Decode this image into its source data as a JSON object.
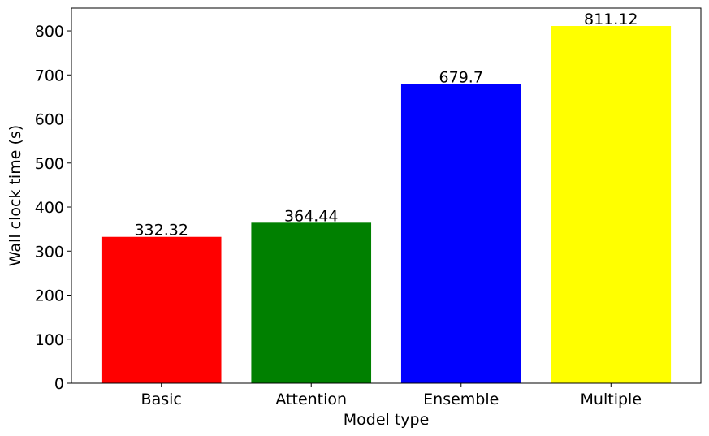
{
  "chart_data": {
    "type": "bar",
    "categories": [
      "Basic",
      "Attention",
      "Ensemble",
      "Multiple"
    ],
    "values": [
      332.32,
      364.44,
      679.7,
      811.12
    ],
    "value_labels": [
      "332.32",
      "364.44",
      "679.7",
      "811.12"
    ],
    "colors": [
      "#ff0000",
      "#008000",
      "#0000ff",
      "#ffff00"
    ],
    "title": "",
    "xlabel": "Model type",
    "ylabel": "Wall clock time (s)",
    "ylim": [
      0,
      851.7
    ],
    "yticks": [
      0,
      100,
      200,
      300,
      400,
      500,
      600,
      700,
      800
    ],
    "grid": false,
    "legend": "none"
  }
}
